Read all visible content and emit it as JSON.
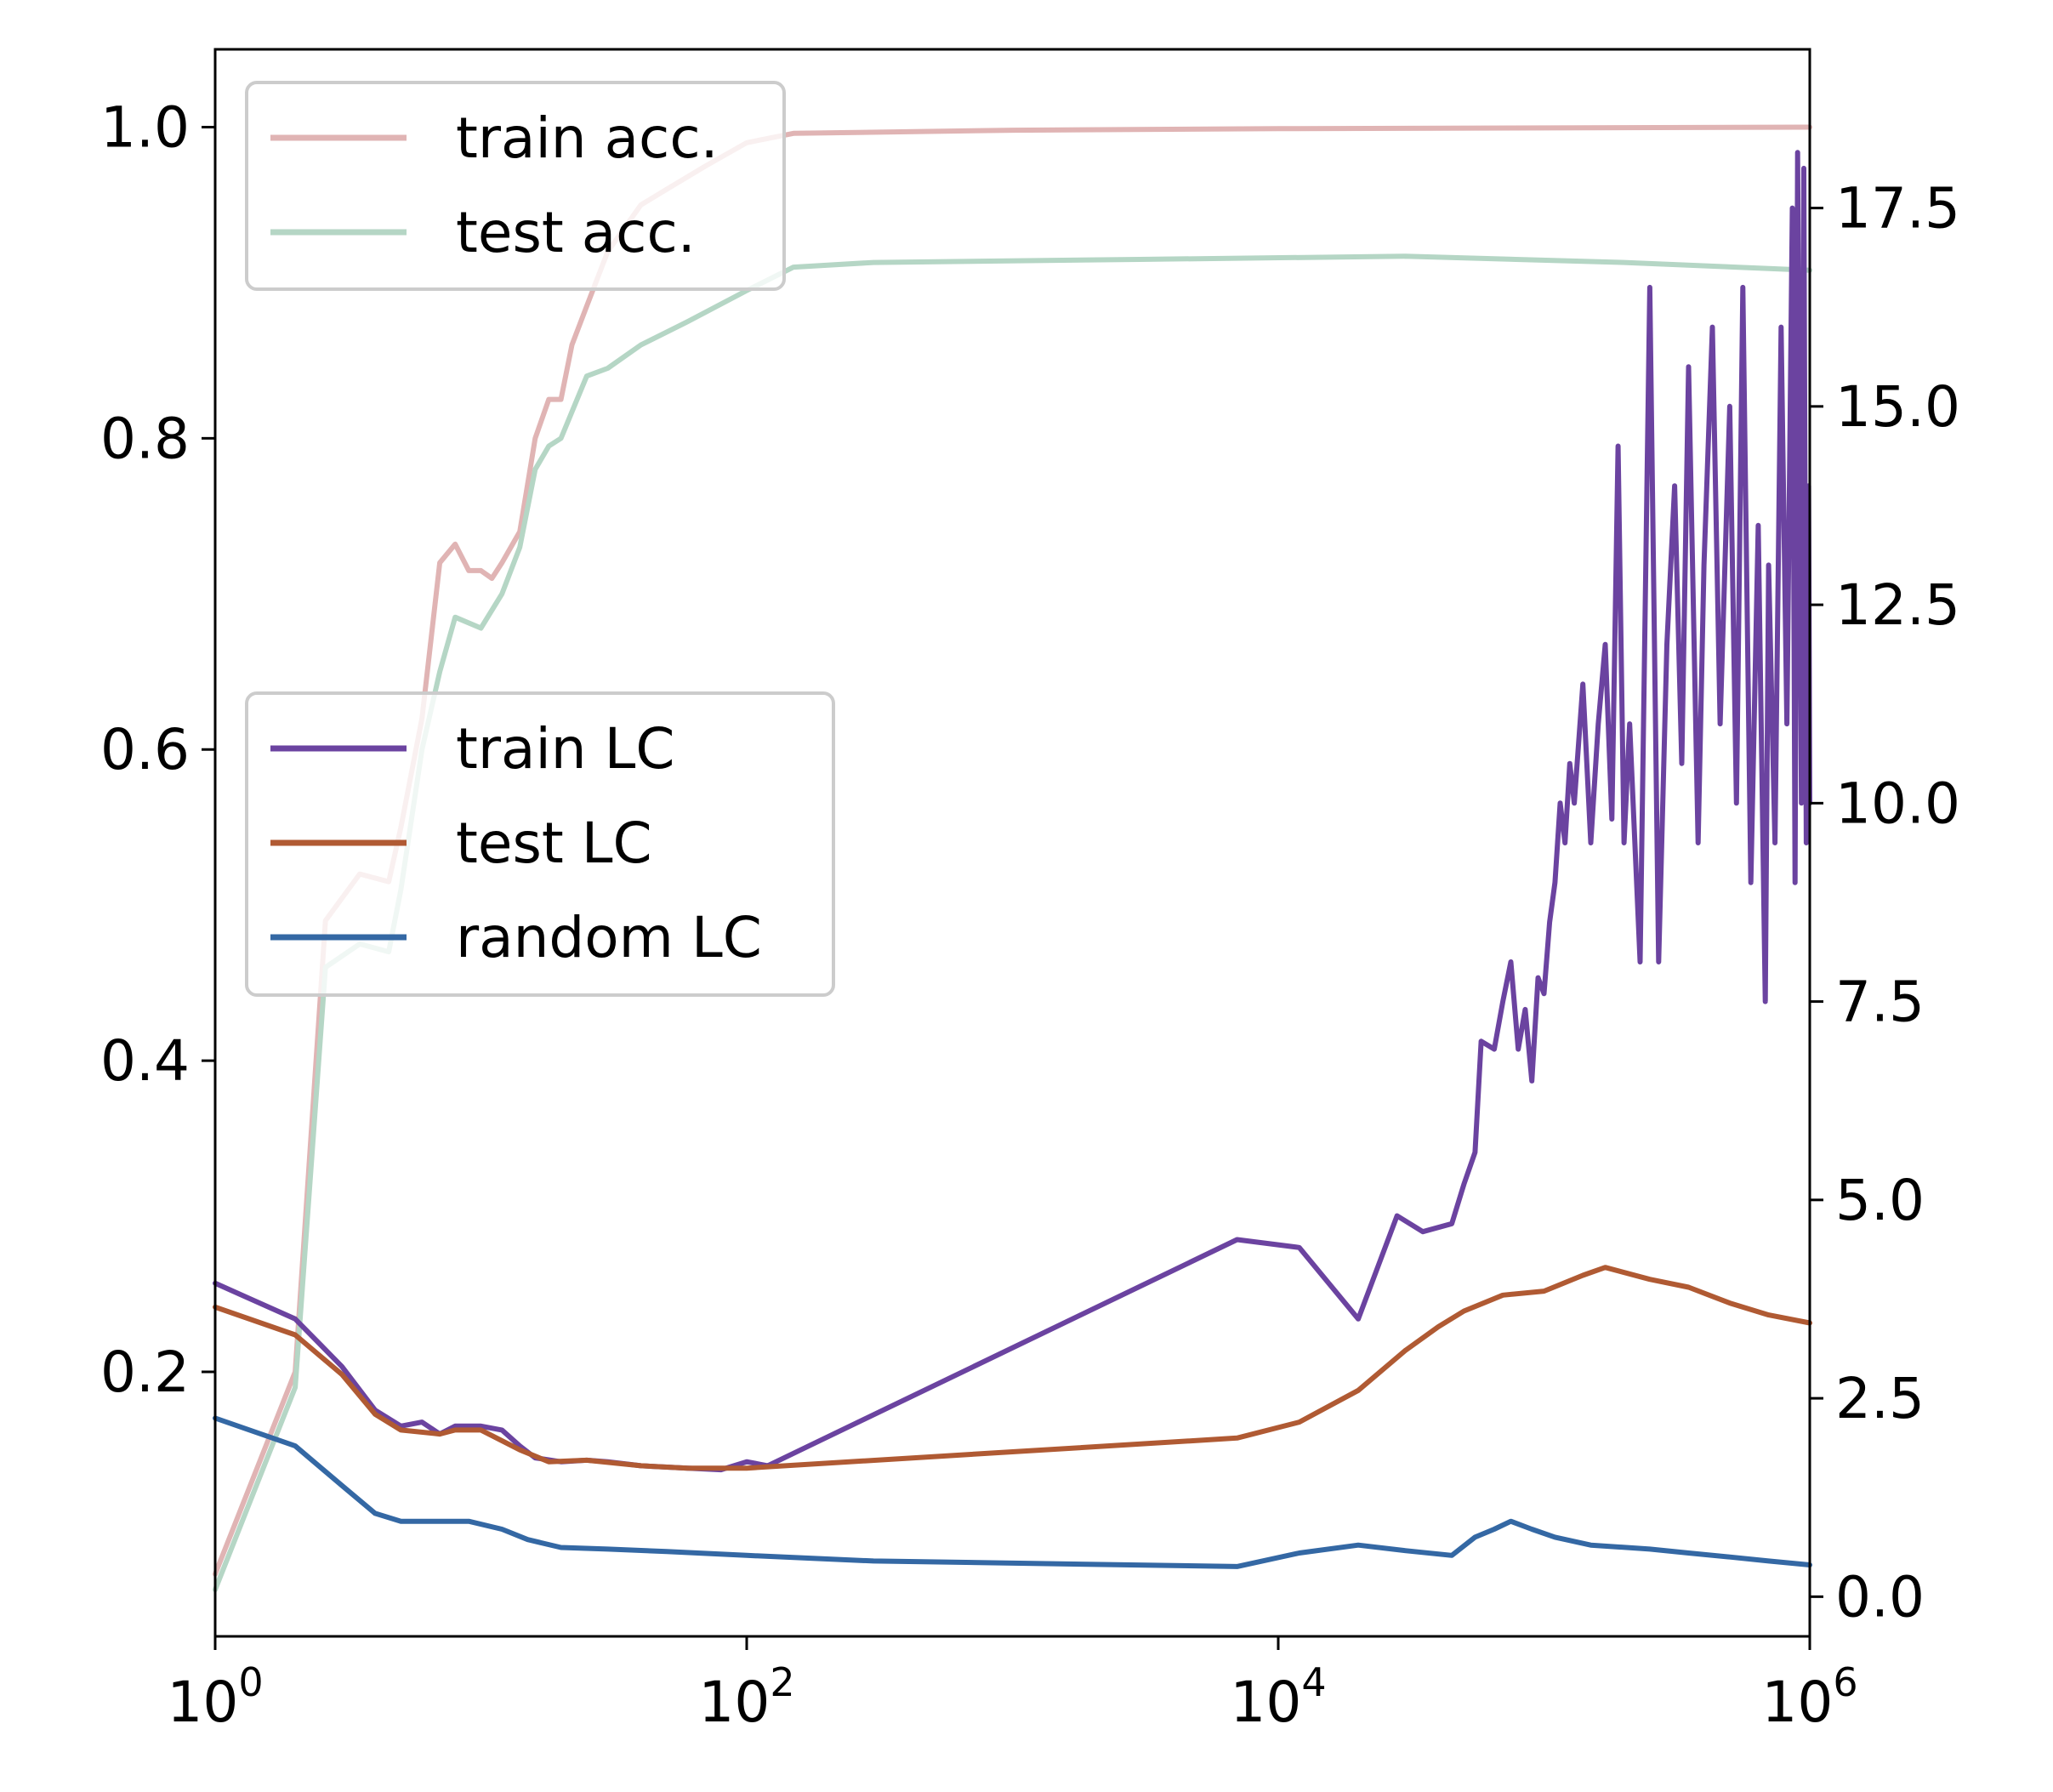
{
  "chart_data": {
    "type": "line",
    "title": "",
    "xlabel": "",
    "ylabel_left": "",
    "ylabel_right": "",
    "xscale": "log",
    "xlim": [
      1,
      1000000
    ],
    "ylim_left": [
      0.03,
      1.05
    ],
    "ylim_right": [
      -0.5,
      19.5
    ],
    "grid": false,
    "x_ticks": [
      {
        "base": "10",
        "exp": "0",
        "value": 1
      },
      {
        "base": "10",
        "exp": "2",
        "value": 100
      },
      {
        "base": "10",
        "exp": "4",
        "value": 10000
      },
      {
        "base": "10",
        "exp": "6",
        "value": 1000000
      }
    ],
    "y_ticks_left": [
      {
        "label": "0.2",
        "value": 0.2
      },
      {
        "label": "0.4",
        "value": 0.4
      },
      {
        "label": "0.6",
        "value": 0.6
      },
      {
        "label": "0.8",
        "value": 0.8
      },
      {
        "label": "1.0",
        "value": 1.0
      }
    ],
    "y_ticks_right": [
      {
        "label": "0.0",
        "value": 0.0
      },
      {
        "label": "2.5",
        "value": 2.5
      },
      {
        "label": "5.0",
        "value": 5.0
      },
      {
        "label": "7.5",
        "value": 7.5
      },
      {
        "label": "10.0",
        "value": 10.0
      },
      {
        "label": "12.5",
        "value": 12.5
      },
      {
        "label": "15.0",
        "value": 15.0
      },
      {
        "label": "17.5",
        "value": 17.5
      }
    ],
    "legends": [
      {
        "placement": "upper-left",
        "entries": [
          "train acc.",
          "test acc."
        ]
      },
      {
        "placement": "center-left",
        "entries": [
          "train LC",
          "test LC",
          "random LC"
        ]
      }
    ],
    "series": [
      {
        "name": "train acc.",
        "axis": "left",
        "color": "#e0b4b4",
        "points": [
          [
            1,
            0.07
          ],
          [
            2,
            0.2
          ],
          [
            2.6,
            0.49
          ],
          [
            3.5,
            0.52
          ],
          [
            4.5,
            0.515
          ],
          [
            5,
            0.55
          ],
          [
            6,
            0.62
          ],
          [
            7,
            0.72
          ],
          [
            8,
            0.732
          ],
          [
            9,
            0.715
          ],
          [
            10,
            0.715
          ],
          [
            11,
            0.71
          ],
          [
            12,
            0.72
          ],
          [
            14,
            0.74
          ],
          [
            16,
            0.8
          ],
          [
            18,
            0.825
          ],
          [
            20,
            0.825
          ],
          [
            22,
            0.86
          ],
          [
            25,
            0.885
          ],
          [
            30,
            0.92
          ],
          [
            40,
            0.95
          ],
          [
            50,
            0.96
          ],
          [
            70,
            0.975
          ],
          [
            100,
            0.99
          ],
          [
            150,
            0.996
          ],
          [
            1000,
            0.998
          ],
          [
            10000,
            0.999
          ],
          [
            1000000,
            1.0
          ]
        ]
      },
      {
        "name": "test acc.",
        "axis": "left",
        "color": "#b5d6c5",
        "points": [
          [
            1,
            0.06
          ],
          [
            2,
            0.19
          ],
          [
            2.6,
            0.46
          ],
          [
            3.5,
            0.475
          ],
          [
            4.5,
            0.47
          ],
          [
            5,
            0.51
          ],
          [
            6,
            0.6
          ],
          [
            7,
            0.65
          ],
          [
            8,
            0.685
          ],
          [
            10,
            0.678
          ],
          [
            12,
            0.7
          ],
          [
            14,
            0.73
          ],
          [
            16,
            0.78
          ],
          [
            18,
            0.795
          ],
          [
            20,
            0.8
          ],
          [
            25,
            0.84
          ],
          [
            30,
            0.845
          ],
          [
            40,
            0.86
          ],
          [
            60,
            0.875
          ],
          [
            100,
            0.895
          ],
          [
            150,
            0.91
          ],
          [
            300,
            0.913
          ],
          [
            3000,
            0.915
          ],
          [
            30000,
            0.917
          ],
          [
            200000,
            0.913
          ],
          [
            1000000,
            0.908
          ]
        ]
      },
      {
        "name": "train LC",
        "axis": "right",
        "color": "#6b43a0",
        "points": [
          [
            1,
            3.95
          ],
          [
            2,
            3.5
          ],
          [
            3,
            2.9
          ],
          [
            4,
            2.35
          ],
          [
            5,
            2.15
          ],
          [
            6,
            2.2
          ],
          [
            7,
            2.05
          ],
          [
            8,
            2.15
          ],
          [
            10,
            2.15
          ],
          [
            12,
            2.1
          ],
          [
            14,
            1.9
          ],
          [
            16,
            1.75
          ],
          [
            20,
            1.7
          ],
          [
            25,
            1.72
          ],
          [
            30,
            1.7
          ],
          [
            40,
            1.65
          ],
          [
            60,
            1.62
          ],
          [
            80,
            1.6
          ],
          [
            100,
            1.7
          ],
          [
            120,
            1.65
          ],
          [
            7000,
            4.5
          ],
          [
            12000,
            4.4
          ],
          [
            20000,
            3.5
          ],
          [
            28000,
            4.8
          ],
          [
            35000,
            4.6
          ],
          [
            45000,
            4.7
          ],
          [
            50000,
            5.2
          ],
          [
            55000,
            5.6
          ],
          [
            58000,
            7.0
          ],
          [
            65000,
            6.9
          ],
          [
            70000,
            7.5
          ],
          [
            75000,
            8.0
          ],
          [
            80000,
            6.9
          ],
          [
            85000,
            7.4
          ],
          [
            90000,
            6.5
          ],
          [
            95000,
            7.8
          ],
          [
            100000,
            7.6
          ],
          [
            105000,
            8.5
          ],
          [
            110000,
            9.0
          ],
          [
            115000,
            10.0
          ],
          [
            120000,
            9.5
          ],
          [
            125000,
            10.5
          ],
          [
            130000,
            10.0
          ],
          [
            140000,
            11.5
          ],
          [
            150000,
            9.5
          ],
          [
            160000,
            11.0
          ],
          [
            170000,
            12.0
          ],
          [
            180000,
            9.8
          ],
          [
            190000,
            14.5
          ],
          [
            200000,
            9.5
          ],
          [
            210000,
            11.0
          ],
          [
            230000,
            8.0
          ],
          [
            250000,
            16.5
          ],
          [
            270000,
            8.0
          ],
          [
            290000,
            12.0
          ],
          [
            310000,
            14.0
          ],
          [
            330000,
            10.5
          ],
          [
            350000,
            15.5
          ],
          [
            380000,
            9.5
          ],
          [
            400000,
            13.0
          ],
          [
            430000,
            16.0
          ],
          [
            460000,
            11.0
          ],
          [
            500000,
            15.0
          ],
          [
            530000,
            10.0
          ],
          [
            560000,
            16.5
          ],
          [
            600000,
            9.0
          ],
          [
            640000,
            13.5
          ],
          [
            680000,
            7.5
          ],
          [
            700000,
            13.0
          ],
          [
            740000,
            9.5
          ],
          [
            780000,
            16.0
          ],
          [
            820000,
            11.0
          ],
          [
            860000,
            17.5
          ],
          [
            880000,
            9.0
          ],
          [
            900000,
            18.2
          ],
          [
            930000,
            10.0
          ],
          [
            950000,
            18.0
          ],
          [
            970000,
            9.5
          ],
          [
            990000,
            14.0
          ],
          [
            1000000,
            10.0
          ]
        ]
      },
      {
        "name": "test LC",
        "axis": "right",
        "color": "#b05a33",
        "points": [
          [
            1,
            3.65
          ],
          [
            2,
            3.3
          ],
          [
            3,
            2.8
          ],
          [
            4,
            2.3
          ],
          [
            5,
            2.1
          ],
          [
            7,
            2.05
          ],
          [
            8,
            2.1
          ],
          [
            10,
            2.1
          ],
          [
            14,
            1.85
          ],
          [
            18,
            1.7
          ],
          [
            25,
            1.72
          ],
          [
            40,
            1.65
          ],
          [
            60,
            1.62
          ],
          [
            100,
            1.62
          ],
          [
            7000,
            2.0
          ],
          [
            12000,
            2.2
          ],
          [
            20000,
            2.6
          ],
          [
            30000,
            3.1
          ],
          [
            40000,
            3.4
          ],
          [
            50000,
            3.6
          ],
          [
            70000,
            3.8
          ],
          [
            100000,
            3.85
          ],
          [
            140000,
            4.05
          ],
          [
            170000,
            4.15
          ],
          [
            250000,
            4.0
          ],
          [
            350000,
            3.9
          ],
          [
            500000,
            3.7
          ],
          [
            700000,
            3.55
          ],
          [
            1000000,
            3.45
          ]
        ]
      },
      {
        "name": "random LC",
        "axis": "right",
        "color": "#3468a4",
        "points": [
          [
            1,
            2.25
          ],
          [
            2,
            1.9
          ],
          [
            3,
            1.4
          ],
          [
            4,
            1.05
          ],
          [
            5,
            0.95
          ],
          [
            7,
            0.95
          ],
          [
            9,
            0.95
          ],
          [
            12,
            0.85
          ],
          [
            15,
            0.72
          ],
          [
            20,
            0.62
          ],
          [
            30,
            0.6
          ],
          [
            50,
            0.57
          ],
          [
            100,
            0.52
          ],
          [
            300,
            0.45
          ],
          [
            7000,
            0.38
          ],
          [
            12000,
            0.55
          ],
          [
            20000,
            0.65
          ],
          [
            30000,
            0.58
          ],
          [
            45000,
            0.52
          ],
          [
            55000,
            0.75
          ],
          [
            65000,
            0.85
          ],
          [
            75000,
            0.95
          ],
          [
            90000,
            0.85
          ],
          [
            110000,
            0.75
          ],
          [
            150000,
            0.65
          ],
          [
            250000,
            0.6
          ],
          [
            350000,
            0.55
          ],
          [
            500000,
            0.5
          ],
          [
            700000,
            0.45
          ],
          [
            1000000,
            0.4
          ]
        ]
      }
    ]
  }
}
